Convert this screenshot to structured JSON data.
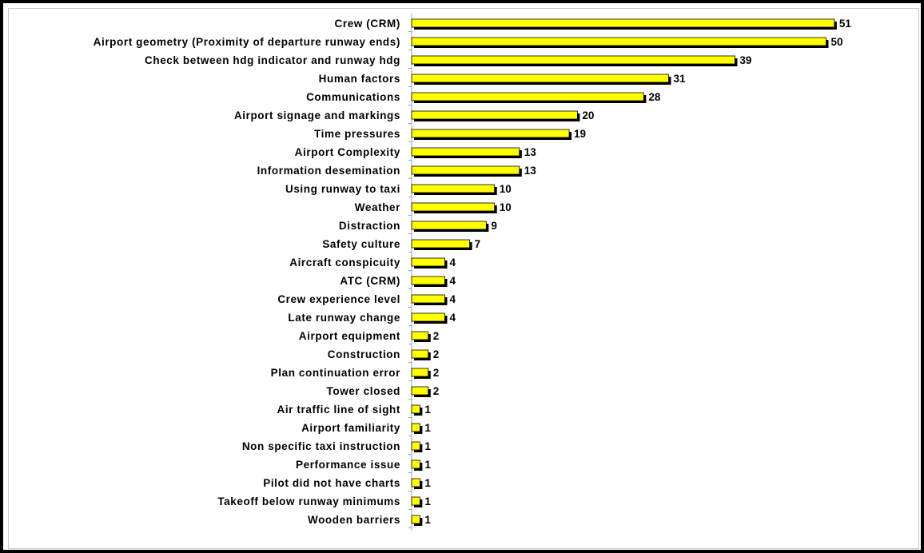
{
  "chart_data": {
    "type": "bar",
    "orientation": "horizontal",
    "categories": [
      "Crew (CRM)",
      "Airport geometry (Proximity of departure runway ends)",
      "Check between hdg indicator and runway hdg",
      "Human factors",
      "Communications",
      "Airport signage and markings",
      "Time pressures",
      "Airport Complexity",
      "Information desemination",
      "Using runway to taxi",
      "Weather",
      "Distraction",
      "Safety culture",
      "Aircraft conspicuity",
      "ATC (CRM)",
      "Crew experience level",
      "Late runway change",
      "Airport equipment",
      "Construction",
      "Plan continuation error",
      "Tower closed",
      "Air traffic line of sight",
      "Airport familiarity",
      "Non specific taxi instruction",
      "Performance issue",
      "Pilot did not have charts",
      "Takeoff below runway minimums",
      "Wooden barriers"
    ],
    "values": [
      51,
      50,
      39,
      31,
      28,
      20,
      19,
      13,
      13,
      10,
      10,
      9,
      7,
      4,
      4,
      4,
      4,
      2,
      2,
      2,
      2,
      1,
      1,
      1,
      1,
      1,
      1,
      1
    ],
    "title": "",
    "xlabel": "",
    "ylabel": "",
    "xlim": [
      0,
      51
    ],
    "grid": false,
    "legend": "none",
    "data_labels": true,
    "colors": {
      "bar_fill": "#ffff00",
      "bar_shadow": "#000000",
      "bar_border": "#000000",
      "axis": "#a0a0a0",
      "frame": "#000000"
    }
  }
}
